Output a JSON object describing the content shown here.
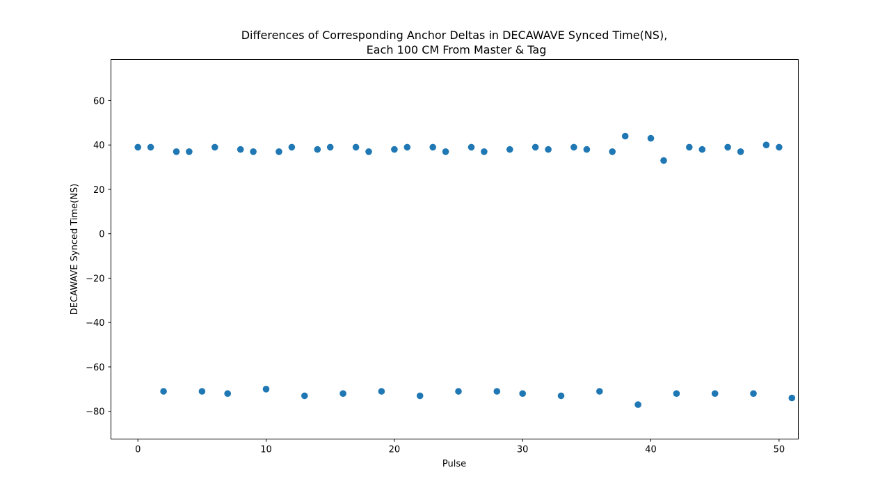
{
  "chart_data": {
    "type": "scatter",
    "title_lines": [
      "Differences of Corresponding Anchor Deltas in DECAWAVE Synced Time(NS),",
      "Each 100 CM From Master & Tag"
    ],
    "xlabel": "Pulse",
    "ylabel": "DECAWAVE Synced Time(NS)",
    "xlim": [
      -2.1,
      51.5
    ],
    "ylim": [
      -92.5,
      78.5
    ],
    "xticks": [
      0,
      10,
      20,
      30,
      40,
      50
    ],
    "yticks": [
      60,
      40,
      20,
      0,
      -20,
      -40,
      -60,
      -80
    ],
    "ytick_labels": [
      "60",
      "40",
      "20",
      "0",
      "−20",
      "−40",
      "−60",
      "−80"
    ],
    "xtick_labels": [
      "0",
      "10",
      "20",
      "30",
      "40",
      "50"
    ],
    "grid": false,
    "marker_color": "#1f77b4",
    "x": [
      0,
      1,
      2,
      3,
      4,
      5,
      6,
      7,
      8,
      9,
      10,
      11,
      12,
      13,
      14,
      15,
      16,
      17,
      18,
      19,
      20,
      21,
      22,
      23,
      24,
      25,
      26,
      27,
      28,
      29,
      30,
      31,
      32,
      33,
      34,
      35,
      36,
      37,
      38,
      39,
      40,
      41,
      42,
      43,
      44,
      45,
      46,
      47,
      48,
      49,
      50,
      51
    ],
    "y": [
      39,
      39,
      -71,
      37,
      37,
      -71,
      39,
      -72,
      38,
      37,
      -70,
      37,
      39,
      -73,
      38,
      39,
      -72,
      39,
      37,
      -71,
      38,
      39,
      -73,
      39,
      37,
      -71,
      39,
      37,
      -71,
      38,
      -72,
      39,
      38,
      -73,
      39,
      38,
      -71,
      37,
      44,
      -77,
      43,
      33,
      -72,
      39,
      38,
      -72,
      39,
      37,
      -72,
      40,
      39,
      -74
    ]
  }
}
